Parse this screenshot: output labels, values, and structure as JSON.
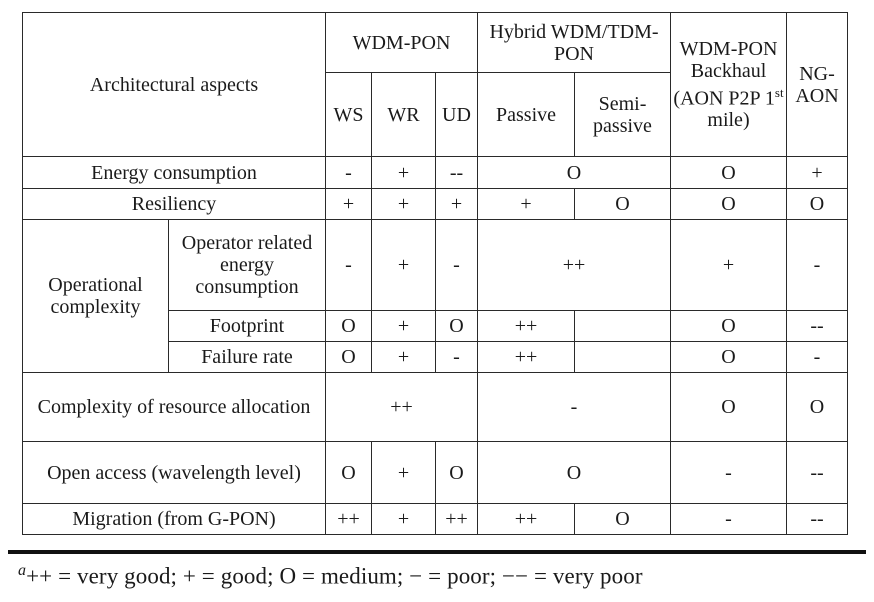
{
  "headers": {
    "arch": "Architectural aspects",
    "wdm_pon": "WDM-PON",
    "hybrid": "Hybrid WDM/TDM-PON",
    "backhaul": "WDM-PON Backhaul (AON P2P 1",
    "backhaul_sup": "st",
    "backhaul_tail": " mile)",
    "ngaon": "NG-AON",
    "ws": "WS",
    "wr": "WR",
    "ud": "UD",
    "passive": "Passive",
    "semi": "Semi-passive"
  },
  "rows": {
    "energy": {
      "label": "Energy consumption",
      "ws": "-",
      "wr": "+",
      "ud": "--",
      "hybrid": "O",
      "backhaul": "O",
      "ngaon": "+"
    },
    "resil": {
      "label": "Resiliency",
      "ws": "+",
      "wr": "+",
      "ud": "+",
      "passive": "+",
      "semi": "O",
      "backhaul": "O",
      "ngaon": "O"
    },
    "opgroup": "Operational complexity",
    "openergy": {
      "label": "Operator related energy consumption",
      "ws": "-",
      "wr": "+",
      "ud": "-",
      "hybrid": "++",
      "backhaul": "+",
      "ngaon": "-"
    },
    "foot": {
      "label": "Footprint",
      "ws": "O",
      "wr": "+",
      "ud": "O",
      "passive": "++",
      "semi": "",
      "backhaul": "O",
      "ngaon": "--"
    },
    "fail": {
      "label": "Failure rate",
      "ws": "O",
      "wr": "+",
      "ud": "-",
      "passive": "++",
      "semi": "",
      "backhaul": "O",
      "ngaon": "-"
    },
    "alloc": {
      "label": "Complexity of resource allocation",
      "wdm": "++",
      "hybrid": "-",
      "backhaul": "O",
      "ngaon": "O"
    },
    "open": {
      "label": "Open access (wavelength level)",
      "ws": "O",
      "wr": "+",
      "ud": "O",
      "hybrid": "O",
      "backhaul": "-",
      "ngaon": "--"
    },
    "migr": {
      "label": "Migration (from G-PON)",
      "ws": "++",
      "wr": "+",
      "ud": "++",
      "passive": "++",
      "semi": "O",
      "backhaul": "-",
      "ngaon": "--"
    }
  },
  "footnote": {
    "marker": "a",
    "text": "++ = very good; + = good; O = medium; − = poor; −− = very poor"
  }
}
